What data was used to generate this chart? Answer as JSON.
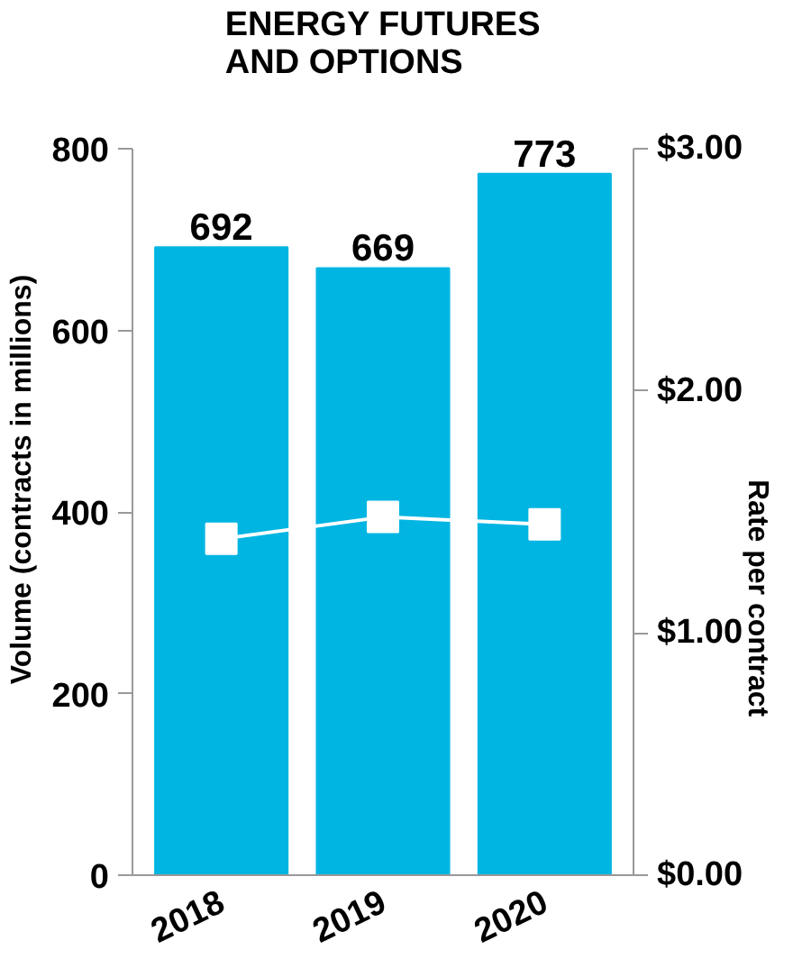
{
  "chart_data": {
    "type": "bar",
    "title": "ENERGY FUTURES AND OPTIONS",
    "categories": [
      "2018",
      "2019",
      "2020"
    ],
    "series": [
      {
        "type": "bar",
        "color": "#00b5e2",
        "values": [
          692,
          669,
          773
        ],
        "value_labels": [
          "692",
          "669",
          "773"
        ]
      },
      {
        "type": "line",
        "axis": "y2",
        "color": "#ffffff",
        "values": [
          1.39,
          1.48,
          1.45
        ],
        "marker": "square"
      }
    ],
    "ylabel": "Volume (contracts in millions)",
    "y2label": "Rate per contract",
    "ylim": [
      0,
      800
    ],
    "yticks": [
      0,
      200,
      400,
      600,
      800
    ],
    "y2lim": [
      0,
      3
    ],
    "y2ticks": [
      {
        "value": 0,
        "label": "$0.00"
      },
      {
        "value": 1,
        "label": "$1.00"
      },
      {
        "value": 2,
        "label": "$2.00"
      },
      {
        "value": 3,
        "label": "$3.00"
      }
    ],
    "grid": false
  }
}
